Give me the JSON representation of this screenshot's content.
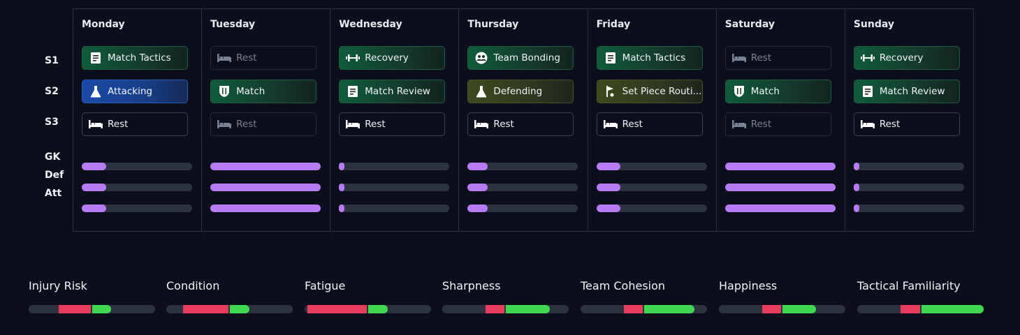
{
  "row_labels": {
    "s1": "S1",
    "s2": "S2",
    "s3": "S3",
    "gk": "GK",
    "def": "Def",
    "att": "Att"
  },
  "days": [
    {
      "name": "Monday",
      "s1": {
        "label": "Match Tactics",
        "style": "green",
        "icon": "document-icon"
      },
      "s2": {
        "label": "Attacking",
        "style": "blue",
        "icon": "flask-icon"
      },
      "s3": {
        "label": "Rest",
        "style": "plain",
        "icon": "bed-icon"
      },
      "intensity": [
        0.22,
        0.22,
        0.22
      ]
    },
    {
      "name": "Tuesday",
      "s1": {
        "label": "Rest",
        "style": "dim",
        "icon": "bed-icon"
      },
      "s2": {
        "label": "Match",
        "style": "green",
        "icon": "shield-icon"
      },
      "s3": {
        "label": "Rest",
        "style": "dim",
        "icon": "bed-icon"
      },
      "intensity": [
        1.0,
        1.0,
        1.0
      ]
    },
    {
      "name": "Wednesday",
      "s1": {
        "label": "Recovery",
        "style": "green",
        "icon": "dumbbell-icon"
      },
      "s2": {
        "label": "Match Review",
        "style": "green",
        "icon": "document-icon"
      },
      "s3": {
        "label": "Rest",
        "style": "plain",
        "icon": "bed-icon"
      },
      "intensity": [
        0.03,
        0.03,
        0.03
      ]
    },
    {
      "name": "Thursday",
      "s1": {
        "label": "Team Bonding",
        "style": "green",
        "icon": "group-icon"
      },
      "s2": {
        "label": "Defending",
        "style": "olive",
        "icon": "flask-icon"
      },
      "s3": {
        "label": "Rest",
        "style": "plain",
        "icon": "bed-icon"
      },
      "intensity": [
        0.18,
        0.18,
        0.18
      ]
    },
    {
      "name": "Friday",
      "s1": {
        "label": "Match Tactics",
        "style": "green",
        "icon": "document-icon"
      },
      "s2": {
        "label": "Set Piece Routi...",
        "style": "olive",
        "icon": "set-piece-icon"
      },
      "s3": {
        "label": "Rest",
        "style": "plain",
        "icon": "bed-icon"
      },
      "intensity": [
        0.22,
        0.22,
        0.22
      ]
    },
    {
      "name": "Saturday",
      "s1": {
        "label": "Rest",
        "style": "dim",
        "icon": "bed-icon"
      },
      "s2": {
        "label": "Match",
        "style": "green",
        "icon": "shield-icon"
      },
      "s3": {
        "label": "Rest",
        "style": "dim",
        "icon": "bed-icon"
      },
      "intensity": [
        1.0,
        1.0,
        1.0
      ]
    },
    {
      "name": "Sunday",
      "s1": {
        "label": "Recovery",
        "style": "green",
        "icon": "dumbbell-icon"
      },
      "s2": {
        "label": "Match Review",
        "style": "green",
        "icon": "document-icon"
      },
      "s3": {
        "label": "Rest",
        "style": "plain",
        "icon": "bed-icon"
      },
      "intensity": [
        0.03,
        0.03,
        0.03
      ]
    }
  ],
  "metrics": [
    {
      "name": "Injury Risk",
      "red": [
        0.24,
        0.49
      ],
      "green": [
        0.5,
        0.65
      ]
    },
    {
      "name": "Condition",
      "red": [
        0.13,
        0.49
      ],
      "green": [
        0.5,
        0.66
      ]
    },
    {
      "name": "Fatigue",
      "red": [
        0.02,
        0.49
      ],
      "green": [
        0.5,
        0.66
      ]
    },
    {
      "name": "Sharpness",
      "red": [
        0.34,
        0.49
      ],
      "green": [
        0.5,
        0.85
      ]
    },
    {
      "name": "Team Cohesion",
      "red": [
        0.34,
        0.49
      ],
      "green": [
        0.5,
        0.9
      ]
    },
    {
      "name": "Happiness",
      "red": [
        0.34,
        0.49
      ],
      "green": [
        0.5,
        0.77
      ]
    },
    {
      "name": "Tactical Familiarity",
      "red": [
        0.34,
        0.5
      ],
      "green": [
        0.51,
        1.0
      ]
    }
  ],
  "colors": {
    "intensity": "#b77cf5",
    "risk_red": "#e63d5c",
    "ok_green": "#3fd94f",
    "background": "#0b0f1c"
  }
}
